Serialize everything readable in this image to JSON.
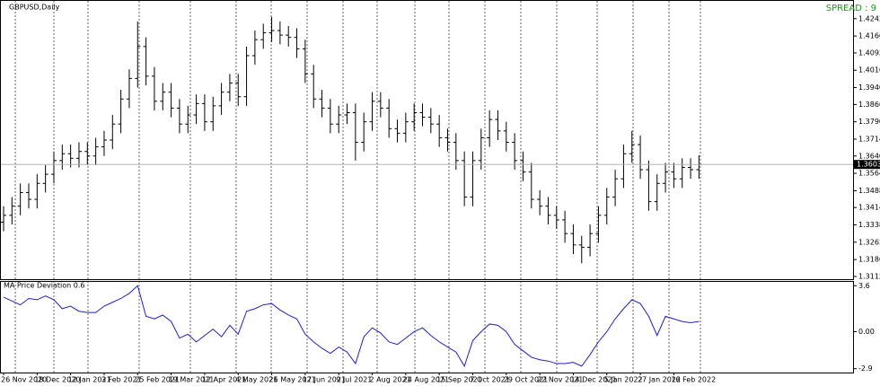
{
  "chart_data": [
    {
      "type": "ohlc",
      "title": "GBPUSD,Daily",
      "annotation": "SPREAD : 9",
      "color": "#000000",
      "categories": [
        "26 Nov 2020",
        null,
        null,
        null,
        "18 Dec 2020",
        null,
        null,
        null,
        "12 Jan 2021",
        null,
        null,
        null,
        "3 Feb 2021",
        null,
        null,
        null,
        "25 Feb 2021",
        null,
        null,
        null,
        "19 Mar 2021",
        null,
        null,
        null,
        "12 Apr 2021",
        null,
        null,
        null,
        "4 May 2021",
        null,
        null,
        null,
        "26 May 2021",
        null,
        null,
        null,
        "17 Jun 2021",
        null,
        null,
        null,
        "9 Jul 2021",
        null,
        null,
        null,
        "2 Aug 2021",
        null,
        null,
        null,
        "24 Aug 2021",
        null,
        null,
        null,
        "15 Sep 2021",
        null,
        null,
        null,
        "7 Oct 2021",
        null,
        null,
        null,
        "29 Oct 2021",
        null,
        null,
        null,
        "22 Nov 2021",
        null,
        null,
        null,
        "14 Dec 2021",
        null,
        null,
        null,
        "5 Jan 2022",
        null,
        null,
        null,
        "27 Jan 2022",
        null,
        null,
        null,
        "16 Feb 2022",
        null,
        null,
        null
      ],
      "open": [
        1.335,
        1.338,
        1.342,
        1.348,
        1.345,
        1.352,
        1.356,
        1.362,
        1.365,
        1.363,
        1.366,
        1.364,
        1.368,
        1.371,
        1.378,
        1.389,
        1.398,
        1.412,
        1.399,
        1.388,
        1.392,
        1.385,
        1.378,
        1.382,
        1.387,
        1.379,
        1.386,
        1.392,
        1.396,
        1.39,
        1.408,
        1.415,
        1.418,
        1.419,
        1.417,
        1.416,
        1.411,
        1.4,
        1.389,
        1.385,
        1.378,
        1.382,
        1.383,
        1.37,
        1.379,
        1.388,
        1.385,
        1.376,
        1.374,
        1.379,
        1.383,
        1.381,
        1.378,
        1.372,
        1.37,
        1.362,
        1.346,
        1.362,
        1.372,
        1.38,
        1.375,
        1.37,
        1.362,
        1.357,
        1.345,
        1.342,
        1.338,
        1.336,
        1.33,
        1.325,
        1.324,
        1.33,
        1.338,
        1.346,
        1.354,
        1.365,
        1.369,
        1.358,
        1.344,
        1.352,
        1.357,
        1.354,
        1.359,
        1.358
      ],
      "high": [
        1.342,
        1.346,
        1.352,
        1.352,
        1.356,
        1.36,
        1.366,
        1.369,
        1.369,
        1.37,
        1.37,
        1.372,
        1.375,
        1.382,
        1.393,
        1.402,
        1.423,
        1.416,
        1.403,
        1.396,
        1.396,
        1.389,
        1.386,
        1.391,
        1.391,
        1.39,
        1.396,
        1.4,
        1.4,
        1.412,
        1.419,
        1.422,
        1.425,
        1.423,
        1.421,
        1.42,
        1.415,
        1.404,
        1.393,
        1.389,
        1.386,
        1.387,
        1.387,
        1.383,
        1.392,
        1.392,
        1.389,
        1.38,
        1.383,
        1.387,
        1.387,
        1.385,
        1.382,
        1.376,
        1.374,
        1.366,
        1.366,
        1.376,
        1.384,
        1.384,
        1.379,
        1.374,
        1.366,
        1.361,
        1.349,
        1.346,
        1.342,
        1.34,
        1.334,
        1.329,
        1.334,
        1.342,
        1.35,
        1.358,
        1.369,
        1.375,
        1.373,
        1.362,
        1.356,
        1.361,
        1.361,
        1.363,
        1.363,
        1.3643
      ],
      "low": [
        1.331,
        1.334,
        1.338,
        1.341,
        1.341,
        1.348,
        1.352,
        1.358,
        1.359,
        1.359,
        1.36,
        1.36,
        1.364,
        1.367,
        1.374,
        1.385,
        1.394,
        1.395,
        1.384,
        1.384,
        1.381,
        1.374,
        1.374,
        1.378,
        1.375,
        1.375,
        1.382,
        1.388,
        1.386,
        1.386,
        1.404,
        1.411,
        1.414,
        1.413,
        1.412,
        1.407,
        1.396,
        1.385,
        1.381,
        1.374,
        1.374,
        1.378,
        1.362,
        1.366,
        1.375,
        1.381,
        1.372,
        1.37,
        1.37,
        1.375,
        1.377,
        1.374,
        1.368,
        1.366,
        1.358,
        1.342,
        1.342,
        1.358,
        1.368,
        1.371,
        1.366,
        1.358,
        1.353,
        1.341,
        1.338,
        1.334,
        1.332,
        1.326,
        1.321,
        1.317,
        1.32,
        1.326,
        1.334,
        1.342,
        1.35,
        1.361,
        1.354,
        1.34,
        1.34,
        1.348,
        1.35,
        1.35,
        1.354,
        1.354
      ],
      "close": [
        1.338,
        1.342,
        1.348,
        1.345,
        1.352,
        1.356,
        1.362,
        1.365,
        1.363,
        1.366,
        1.364,
        1.368,
        1.371,
        1.378,
        1.389,
        1.398,
        1.412,
        1.399,
        1.388,
        1.392,
        1.385,
        1.378,
        1.382,
        1.387,
        1.379,
        1.386,
        1.392,
        1.396,
        1.39,
        1.408,
        1.415,
        1.418,
        1.419,
        1.417,
        1.416,
        1.411,
        1.4,
        1.389,
        1.385,
        1.378,
        1.382,
        1.383,
        1.37,
        1.379,
        1.388,
        1.385,
        1.376,
        1.374,
        1.379,
        1.383,
        1.381,
        1.378,
        1.372,
        1.37,
        1.362,
        1.346,
        1.362,
        1.372,
        1.38,
        1.375,
        1.37,
        1.362,
        1.357,
        1.345,
        1.342,
        1.338,
        1.336,
        1.33,
        1.325,
        1.324,
        1.33,
        1.338,
        1.346,
        1.354,
        1.365,
        1.369,
        1.358,
        1.344,
        1.352,
        1.357,
        1.354,
        1.359,
        1.358,
        1.3603
      ],
      "ylim": [
        1.31,
        1.432
      ],
      "yticks": [
        {
          "value": 1.4242,
          "label": "1.42420"
        },
        {
          "value": 1.4166,
          "label": "1.41660"
        },
        {
          "value": 1.4092,
          "label": "1.40920"
        },
        {
          "value": 1.4016,
          "label": "1.40160"
        },
        {
          "value": 1.394,
          "label": "1.39400"
        },
        {
          "value": 1.3866,
          "label": "1.38660"
        },
        {
          "value": 1.379,
          "label": "1.37900"
        },
        {
          "value": 1.3714,
          "label": "1.37140"
        },
        {
          "value": 1.364,
          "label": "1.36400"
        },
        {
          "value": 1.3564,
          "label": "1.35640"
        },
        {
          "value": 1.3488,
          "label": "1.34880"
        },
        {
          "value": 1.3414,
          "label": "1.34140"
        },
        {
          "value": 1.3338,
          "label": "1.33380"
        },
        {
          "value": 1.3262,
          "label": "1.32620"
        },
        {
          "value": 1.3186,
          "label": "1.31860"
        },
        {
          "value": 1.3112,
          "label": "1.31120"
        }
      ],
      "last_price": {
        "value": 1.3603,
        "label": "1.36030"
      }
    },
    {
      "type": "line",
      "title": "MA Price Deviation 0.6",
      "color": "#1e1ee0",
      "values": [
        2.7,
        2.4,
        2.1,
        2.6,
        2.5,
        2.8,
        2.5,
        1.8,
        2.0,
        1.6,
        1.5,
        1.5,
        2.0,
        2.3,
        2.6,
        3.0,
        3.6,
        1.2,
        1.0,
        1.3,
        0.8,
        -0.5,
        -0.2,
        -0.8,
        -0.3,
        0.2,
        -0.4,
        0.5,
        -0.2,
        1.6,
        1.8,
        2.1,
        2.2,
        1.7,
        1.3,
        1.0,
        -0.2,
        -0.8,
        -1.3,
        -1.7,
        -1.2,
        -1.6,
        -2.5,
        -0.4,
        0.3,
        -0.1,
        -0.8,
        -1.0,
        -0.5,
        0.0,
        0.3,
        -0.3,
        -0.8,
        -1.2,
        -1.6,
        -2.7,
        -0.7,
        0.0,
        0.6,
        0.5,
        0.0,
        -1.0,
        -1.5,
        -2.0,
        -2.2,
        -2.3,
        -2.5,
        -2.5,
        -2.4,
        -2.7,
        -1.8,
        -0.8,
        0.0,
        1.0,
        1.8,
        2.5,
        2.2,
        1.2,
        -0.3,
        1.2,
        1.0,
        0.8,
        0.7,
        0.8
      ],
      "ylim": [
        -3.2,
        3.9
      ],
      "yticks": [
        3.6,
        {
          "value": 0,
          "label": "0.00"
        },
        -2.9
      ]
    }
  ]
}
